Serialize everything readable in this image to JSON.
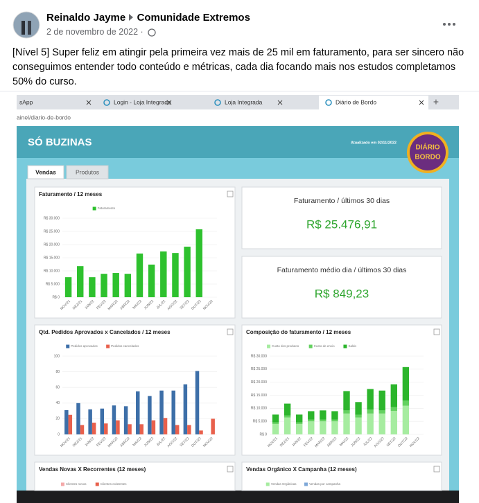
{
  "post": {
    "author": "Reinaldo Jayme",
    "group": "Comunidade Extremos",
    "date": "2 de novembro de 2022 ·",
    "text": "[Nível 5] Super feliz em atingir pela primeira vez mais de 25 mil em faturamento, para ser sincero não conseguimos entender todo conteúdo e métricas, cada dia focando mais nos estudos completamos 50% do curso."
  },
  "browser": {
    "tabs": [
      "sApp",
      "Login - Loja Integrada",
      "Loja Integrada",
      "Diário de Bordo"
    ],
    "url": "ainel/diario-de-bordo"
  },
  "dashboard": {
    "title": "SÓ BUZINAS",
    "updated": "Atualizado em 02/11/2022",
    "logo": [
      "DIÁRIO",
      "BORDO"
    ],
    "tabs": [
      "Vendas",
      "Produtos"
    ],
    "kpis": [
      {
        "label": "Faturamento / últimos 30 dias",
        "value": "R$ 25.476,91"
      },
      {
        "label": "Faturamento médio dia / últimos 30 dias",
        "value": "R$ 849,23"
      }
    ],
    "charts": [
      {
        "type": "bar",
        "title": "Faturamento / 12 meses",
        "categories": [
          "NOV/21",
          "DEZ/21",
          "JAN/22",
          "FEV/22",
          "MAR/22",
          "ABR/22",
          "MAI/22",
          "JUN/22",
          "JUL/22",
          "AGO/22",
          "SET/22",
          "OUT/22",
          "NOV/22"
        ],
        "series": [
          {
            "name": "Faturamento",
            "color": "#2ec12e",
            "values": [
              7600,
              11800,
              7600,
              8900,
              9200,
              8900,
              16600,
              12400,
              17400,
              16800,
              19200,
              25800,
              null
            ]
          }
        ],
        "ylim": [
          0,
          30000
        ],
        "yticks": [
          {
            "value": 0,
            "label": "R$ 0"
          },
          {
            "value": 5000,
            "label": "R$ 5.000"
          },
          {
            "value": 10000,
            "label": "R$ 10.000"
          },
          {
            "value": 15000,
            "label": "R$ 15.000"
          },
          {
            "value": 20000,
            "label": "R$ 20.000"
          },
          {
            "value": 25000,
            "label": "R$ 25.000"
          },
          {
            "value": 30000,
            "label": "R$ 30.000"
          }
        ],
        "grid": true
      },
      {
        "type": "bar",
        "title": "Qtd. Pedidos Aprovados x Cancelados / 12 meses",
        "categories": [
          "NOV/21",
          "DEZ/21",
          "JAN/22",
          "FEV/22",
          "MAR/22",
          "ABR/22",
          "MAI/22",
          "JUN/22",
          "JUL/22",
          "AGO/22",
          "SET/22",
          "OUT/22",
          "NOV/22"
        ],
        "series": [
          {
            "name": "Pedidos aprovados",
            "color": "#3d6fa8",
            "values": [
              31,
              40,
              32,
              33,
              37,
              36,
              55,
              49,
              56,
              56,
              64,
              81,
              null
            ]
          },
          {
            "name": "Pedidos cancelados",
            "color": "#e8604c",
            "values": [
              25,
              12,
              15,
              14,
              18,
              13,
              13,
              18,
              21,
              12,
              12,
              5,
              20
            ]
          }
        ],
        "ylim": [
          0,
          100
        ],
        "yticks": [
          0,
          20,
          40,
          60,
          80,
          100
        ],
        "grid": true
      },
      {
        "type": "stacked_bar",
        "title": "Composição do faturamento / 12 meses",
        "categories": [
          "NOV/21",
          "DEZ/21",
          "JAN/22",
          "FEV/22",
          "MAR/22",
          "ABR/22",
          "MAI/22",
          "JUN/22",
          "JUL/22",
          "AGO/22",
          "SET/22",
          "OUT/22",
          "NOV/22"
        ],
        "series": [
          {
            "name": "Custo dos produtos",
            "color": "#a6eca0",
            "values": [
              4000,
              6500,
              4000,
              5000,
              5000,
              5000,
              8000,
              6500,
              8000,
              8000,
              9000,
              11000,
              null
            ]
          },
          {
            "name": "Custo de envio",
            "color": "#64d160",
            "values": [
              600,
              800,
              600,
              700,
              700,
              700,
              1200,
              1000,
              1500,
              1200,
              1500,
              2000,
              null
            ]
          },
          {
            "name": "Saldo",
            "color": "#2cb52c",
            "values": [
              3000,
              4500,
              3000,
              3200,
              3500,
              3200,
              7400,
              4900,
              7900,
              7600,
              8700,
              12800,
              null
            ]
          }
        ],
        "ylim": [
          0,
          30000
        ],
        "yticks": [
          {
            "value": 0,
            "label": "R$ 0"
          },
          {
            "value": 5000,
            "label": "R$ 5.000"
          },
          {
            "value": 10000,
            "label": "R$ 10.000"
          },
          {
            "value": 15000,
            "label": "R$ 15.000"
          },
          {
            "value": 20000,
            "label": "R$ 20.000"
          },
          {
            "value": 25000,
            "label": "R$ 25.000"
          },
          {
            "value": 30000,
            "label": "R$ 30.000"
          }
        ],
        "grid": true
      }
    ],
    "panels": [
      {
        "title": "Vendas Novas X Recorrentes (12 meses)",
        "legend": [
          {
            "name": "Clientes novos",
            "color": "#f4a9a9"
          },
          {
            "name": "Clientes existentes",
            "color": "#e8604c"
          }
        ]
      },
      {
        "title": "Vendas Orgânico X Campanha (12 meses)",
        "legend": [
          {
            "name": "Vendas Orgânicas",
            "color": "#a6eca0"
          },
          {
            "name": "Vendas por campanha",
            "color": "#7fa8d8"
          }
        ]
      }
    ]
  }
}
